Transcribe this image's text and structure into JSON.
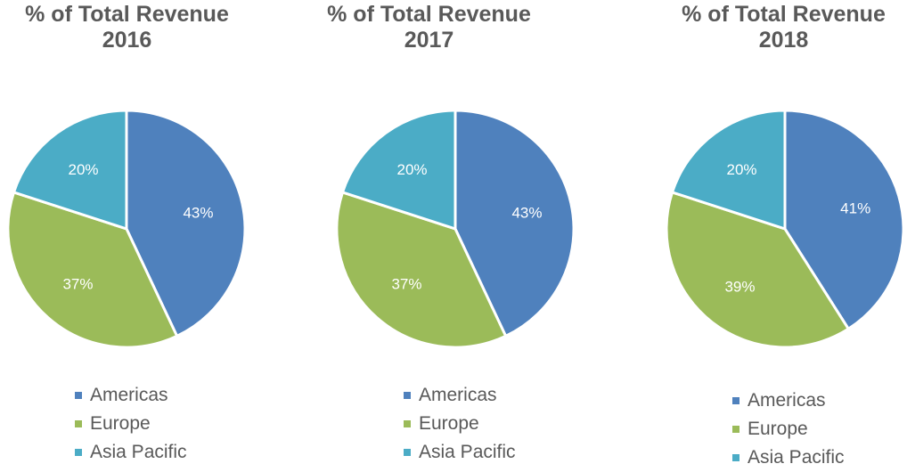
{
  "colors": {
    "Americas": "#4f81bd",
    "Europe": "#9bbb59",
    "Asia Pacific": "#4bacc6"
  },
  "chart_data": [
    {
      "type": "pie",
      "title": "% of Total Revenue 2016",
      "title_line1": "% of Total Revenue",
      "title_line2": "2016",
      "categories": [
        "Americas",
        "Europe",
        "Asia Pacific"
      ],
      "values": [
        43,
        37,
        20
      ],
      "labels": [
        "43%",
        "37%",
        "20%"
      ],
      "legend": [
        "Americas",
        "Europe",
        "Asia Pacific"
      ]
    },
    {
      "type": "pie",
      "title": "% of Total Revenue 2017",
      "title_line1": "% of Total Revenue",
      "title_line2": "2017",
      "categories": [
        "Americas",
        "Europe",
        "Asia Pacific"
      ],
      "values": [
        43,
        37,
        20
      ],
      "labels": [
        "43%",
        "37%",
        "20%"
      ],
      "legend": [
        "Americas",
        "Europe",
        "Asia Pacific"
      ]
    },
    {
      "type": "pie",
      "title": "% of Total Revenue 2018",
      "title_line1": "% of Total Revenue",
      "title_line2": "2018",
      "categories": [
        "Americas",
        "Europe",
        "Asia Pacific"
      ],
      "values": [
        41,
        39,
        20
      ],
      "labels": [
        "41%",
        "39%",
        "20%"
      ],
      "legend": [
        "Americas",
        "Europe",
        "Asia Pacific"
      ]
    }
  ]
}
